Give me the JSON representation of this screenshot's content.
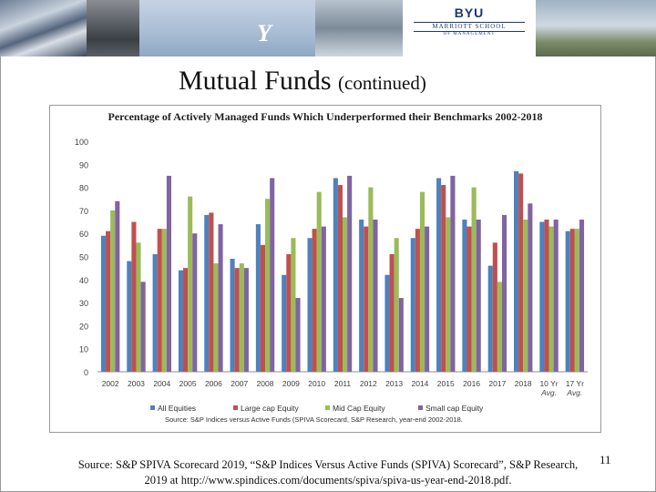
{
  "slide": {
    "title": "Mutual Funds",
    "title_suffix": "(continued)",
    "page_number": "11",
    "source_line1": "Source: S&P SPIVA Scorecard 2019, “S&P Indices Versus Active Funds (SPIVA) Scorecard”, S&P Research,",
    "source_line2": "2019 at http://www.spindices.com/documents/spiva/spiva-us-year-end-2018.pdf."
  },
  "banner": {
    "logo_title": "BYU",
    "logo_sub": "MARRIOTT SCHOOL",
    "logo_sub2": "OF MANAGEMENT",
    "y_mark": "Y"
  },
  "chart_data": {
    "type": "bar",
    "title": "Percentage of Actively Managed Funds Which Underperformed their Benchmarks 2002-2018",
    "source_note": "Source: S&P Indices versus Active Funds (SPIVA Scorecard, S&P Research, year-end 2002-2018.",
    "categories": [
      "2002",
      "2003",
      "2004",
      "2005",
      "2006",
      "2007",
      "2008",
      "2009",
      "2010",
      "2011",
      "2012",
      "2013",
      "2014",
      "2015",
      "2016",
      "2017",
      "2018",
      "10 Yr Avg.",
      "17 Yr Avg."
    ],
    "ylim": [
      0,
      100
    ],
    "yticks": [
      0,
      10,
      20,
      30,
      40,
      50,
      60,
      70,
      80,
      90,
      100
    ],
    "grid": false,
    "legend_position": "bottom",
    "series": [
      {
        "name": "All Equities",
        "color": "#4f81bd",
        "values": [
          59,
          48,
          51,
          44,
          68,
          49,
          64,
          42,
          58,
          84,
          66,
          42,
          58,
          84,
          66,
          46,
          87,
          65,
          61
        ]
      },
      {
        "name": "Large cap Equity",
        "color": "#c0504d",
        "values": [
          61,
          65,
          62,
          45,
          69,
          45,
          55,
          51,
          62,
          81,
          63,
          51,
          62,
          81,
          63,
          56,
          86,
          66,
          62
        ]
      },
      {
        "name": "Mid Cap Equity",
        "color": "#9bbb59",
        "values": [
          70,
          56,
          62,
          76,
          47,
          47,
          75,
          58,
          78,
          67,
          80,
          58,
          78,
          67,
          80,
          39,
          66,
          63,
          62
        ]
      },
      {
        "name": "Small cap Equity",
        "color": "#8064a2",
        "values": [
          74,
          39,
          85,
          60,
          64,
          45,
          84,
          32,
          63,
          85,
          66,
          32,
          63,
          85,
          66,
          68,
          73,
          66,
          66
        ]
      }
    ]
  }
}
